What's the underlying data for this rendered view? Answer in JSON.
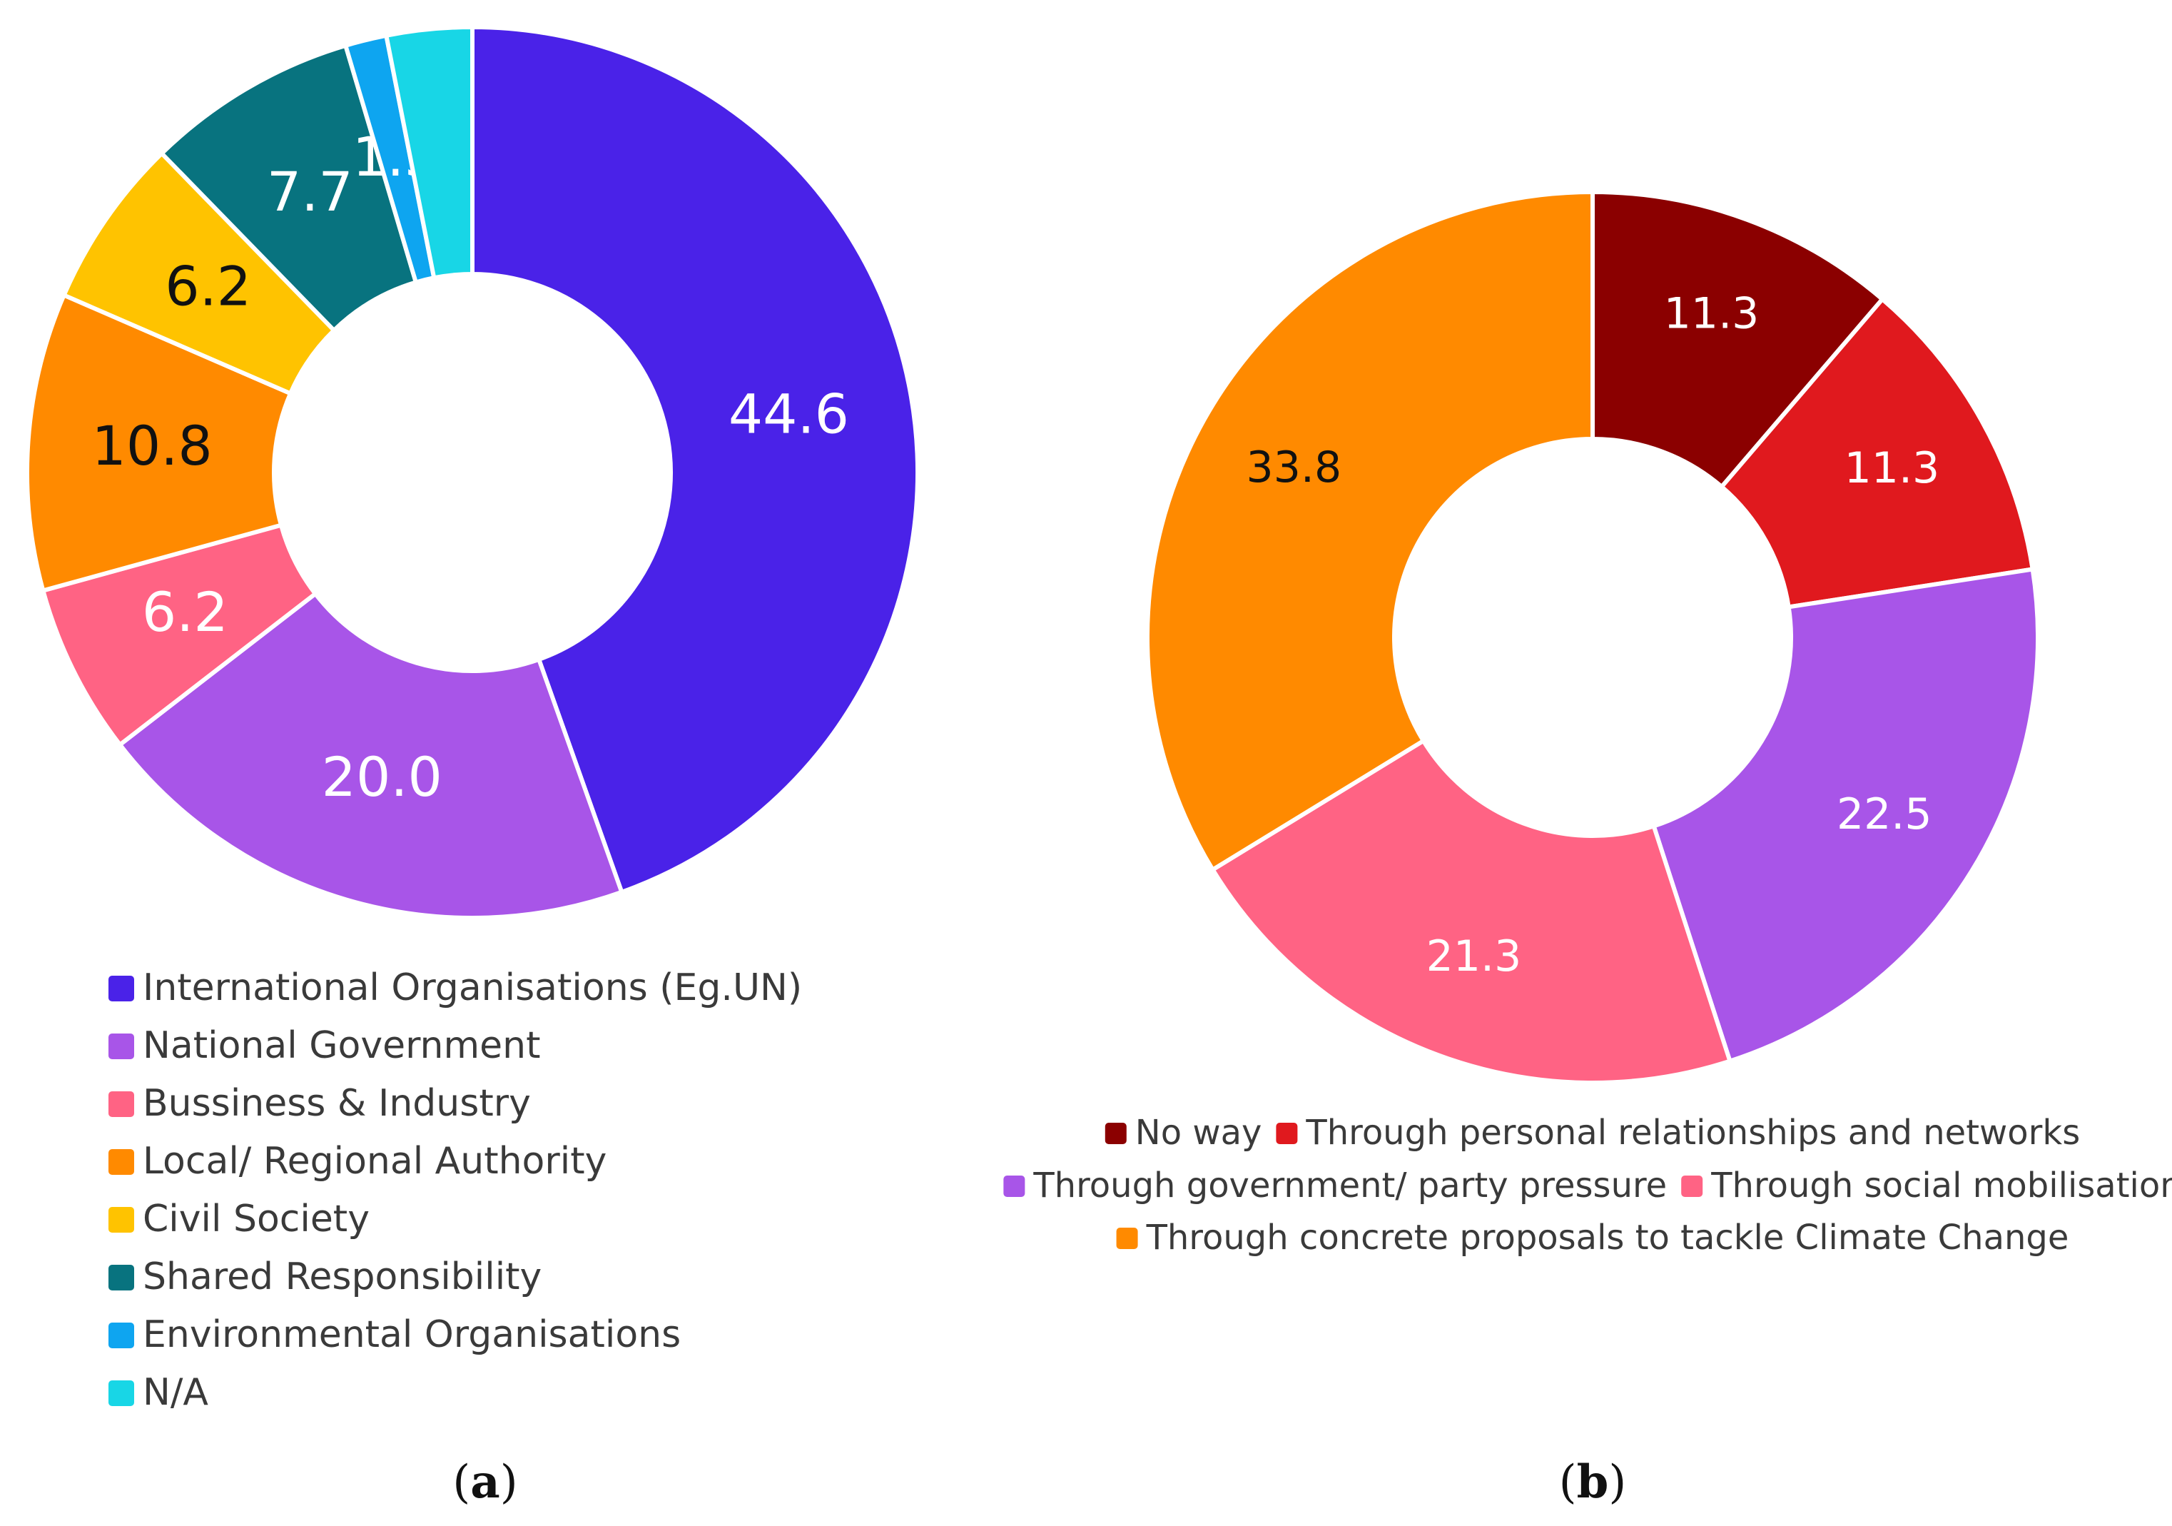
{
  "chart_data": [
    {
      "type": "donut",
      "panel_label": "a",
      "categories": [
        "International Organisations (Eg.UN)",
        "National Government",
        "Bussiness & Industry",
        "Local/ Regional Authority",
        "Civil Society",
        "Shared Responsibility",
        "Environmental Organisations",
        "N/A"
      ],
      "values": [
        44.6,
        20.0,
        6.2,
        10.8,
        6.2,
        7.7,
        1.5,
        3.1
      ],
      "labels": [
        "44.6",
        "20.0",
        "6.2",
        "10.8",
        "6.2",
        "7.7",
        "1.5",
        ""
      ],
      "colors": [
        "#4a22e8",
        "#a855e8",
        "#ff6384",
        "#ff8a00",
        "#ffc300",
        "#08737f",
        "#0ea5f0",
        "#18d6e6"
      ],
      "label_colors": [
        "#ffffff",
        "#ffffff",
        "#ffffff",
        "#111111",
        "#111111",
        "#ffffff",
        "#ffffff",
        "#ffffff"
      ],
      "legend_position": "bottom-left"
    },
    {
      "type": "donut",
      "panel_label": "b",
      "categories": [
        "No way",
        "Through personal relationships and networks",
        "Through government/ party pressure",
        "Through social mobilisation",
        "Through concrete proposals to tackle Climate Change"
      ],
      "values": [
        11.3,
        11.3,
        22.5,
        21.3,
        33.8
      ],
      "labels": [
        "11.3",
        "11.3",
        "22.5",
        "21.3",
        "33.8"
      ],
      "colors": [
        "#8b0000",
        "#e0191e",
        "#a855e8",
        "#ff6384",
        "#ff8a00"
      ],
      "label_colors": [
        "#ffffff",
        "#ffffff",
        "#ffffff",
        "#ffffff",
        "#111111"
      ],
      "legend_position": "bottom"
    }
  ]
}
